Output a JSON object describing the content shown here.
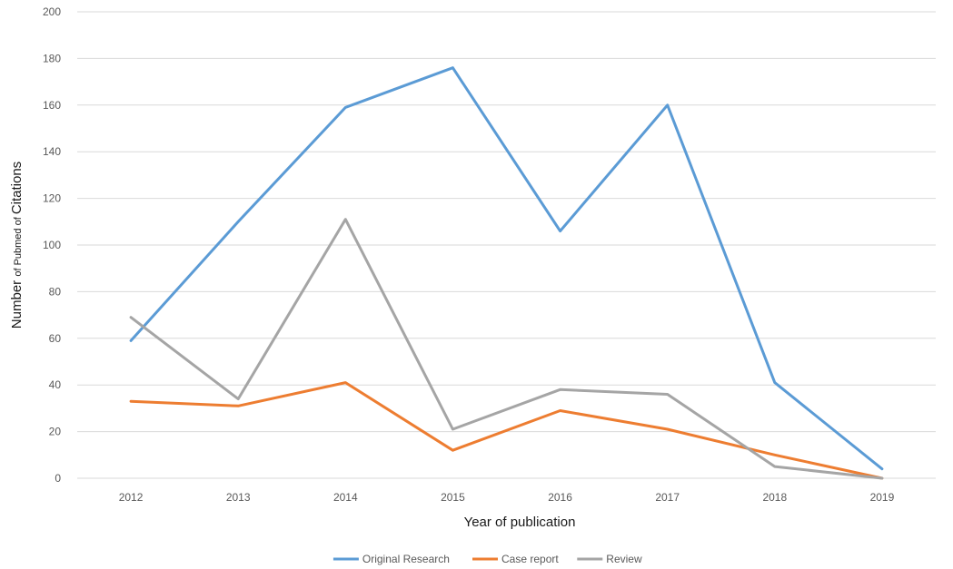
{
  "chart_data": {
    "type": "line",
    "xlabel": "Year of publication",
    "ylabel_parts": [
      {
        "text": "Number ",
        "size": "big"
      },
      {
        "text": "of Pubmed of ",
        "size": "small"
      },
      {
        "text": "Citations",
        "size": "big"
      }
    ],
    "categories": [
      "2012",
      "2013",
      "2014",
      "2015",
      "2016",
      "2017",
      "2018",
      "2019"
    ],
    "ylim": [
      0,
      200
    ],
    "yticks": [
      0,
      20,
      40,
      60,
      80,
      100,
      120,
      140,
      160,
      180,
      200
    ],
    "grid": true,
    "legend_position": "bottom",
    "series": [
      {
        "name": "Original Research",
        "color": "#5b9bd5",
        "values": [
          59,
          110,
          159,
          176,
          106,
          160,
          41,
          4
        ]
      },
      {
        "name": "Case report",
        "color": "#ed7d31",
        "values": [
          33,
          31,
          41,
          12,
          29,
          21,
          10,
          0
        ]
      },
      {
        "name": "Review",
        "color": "#a5a5a5",
        "values": [
          69,
          34,
          111,
          21,
          38,
          36,
          5,
          0
        ]
      }
    ]
  }
}
